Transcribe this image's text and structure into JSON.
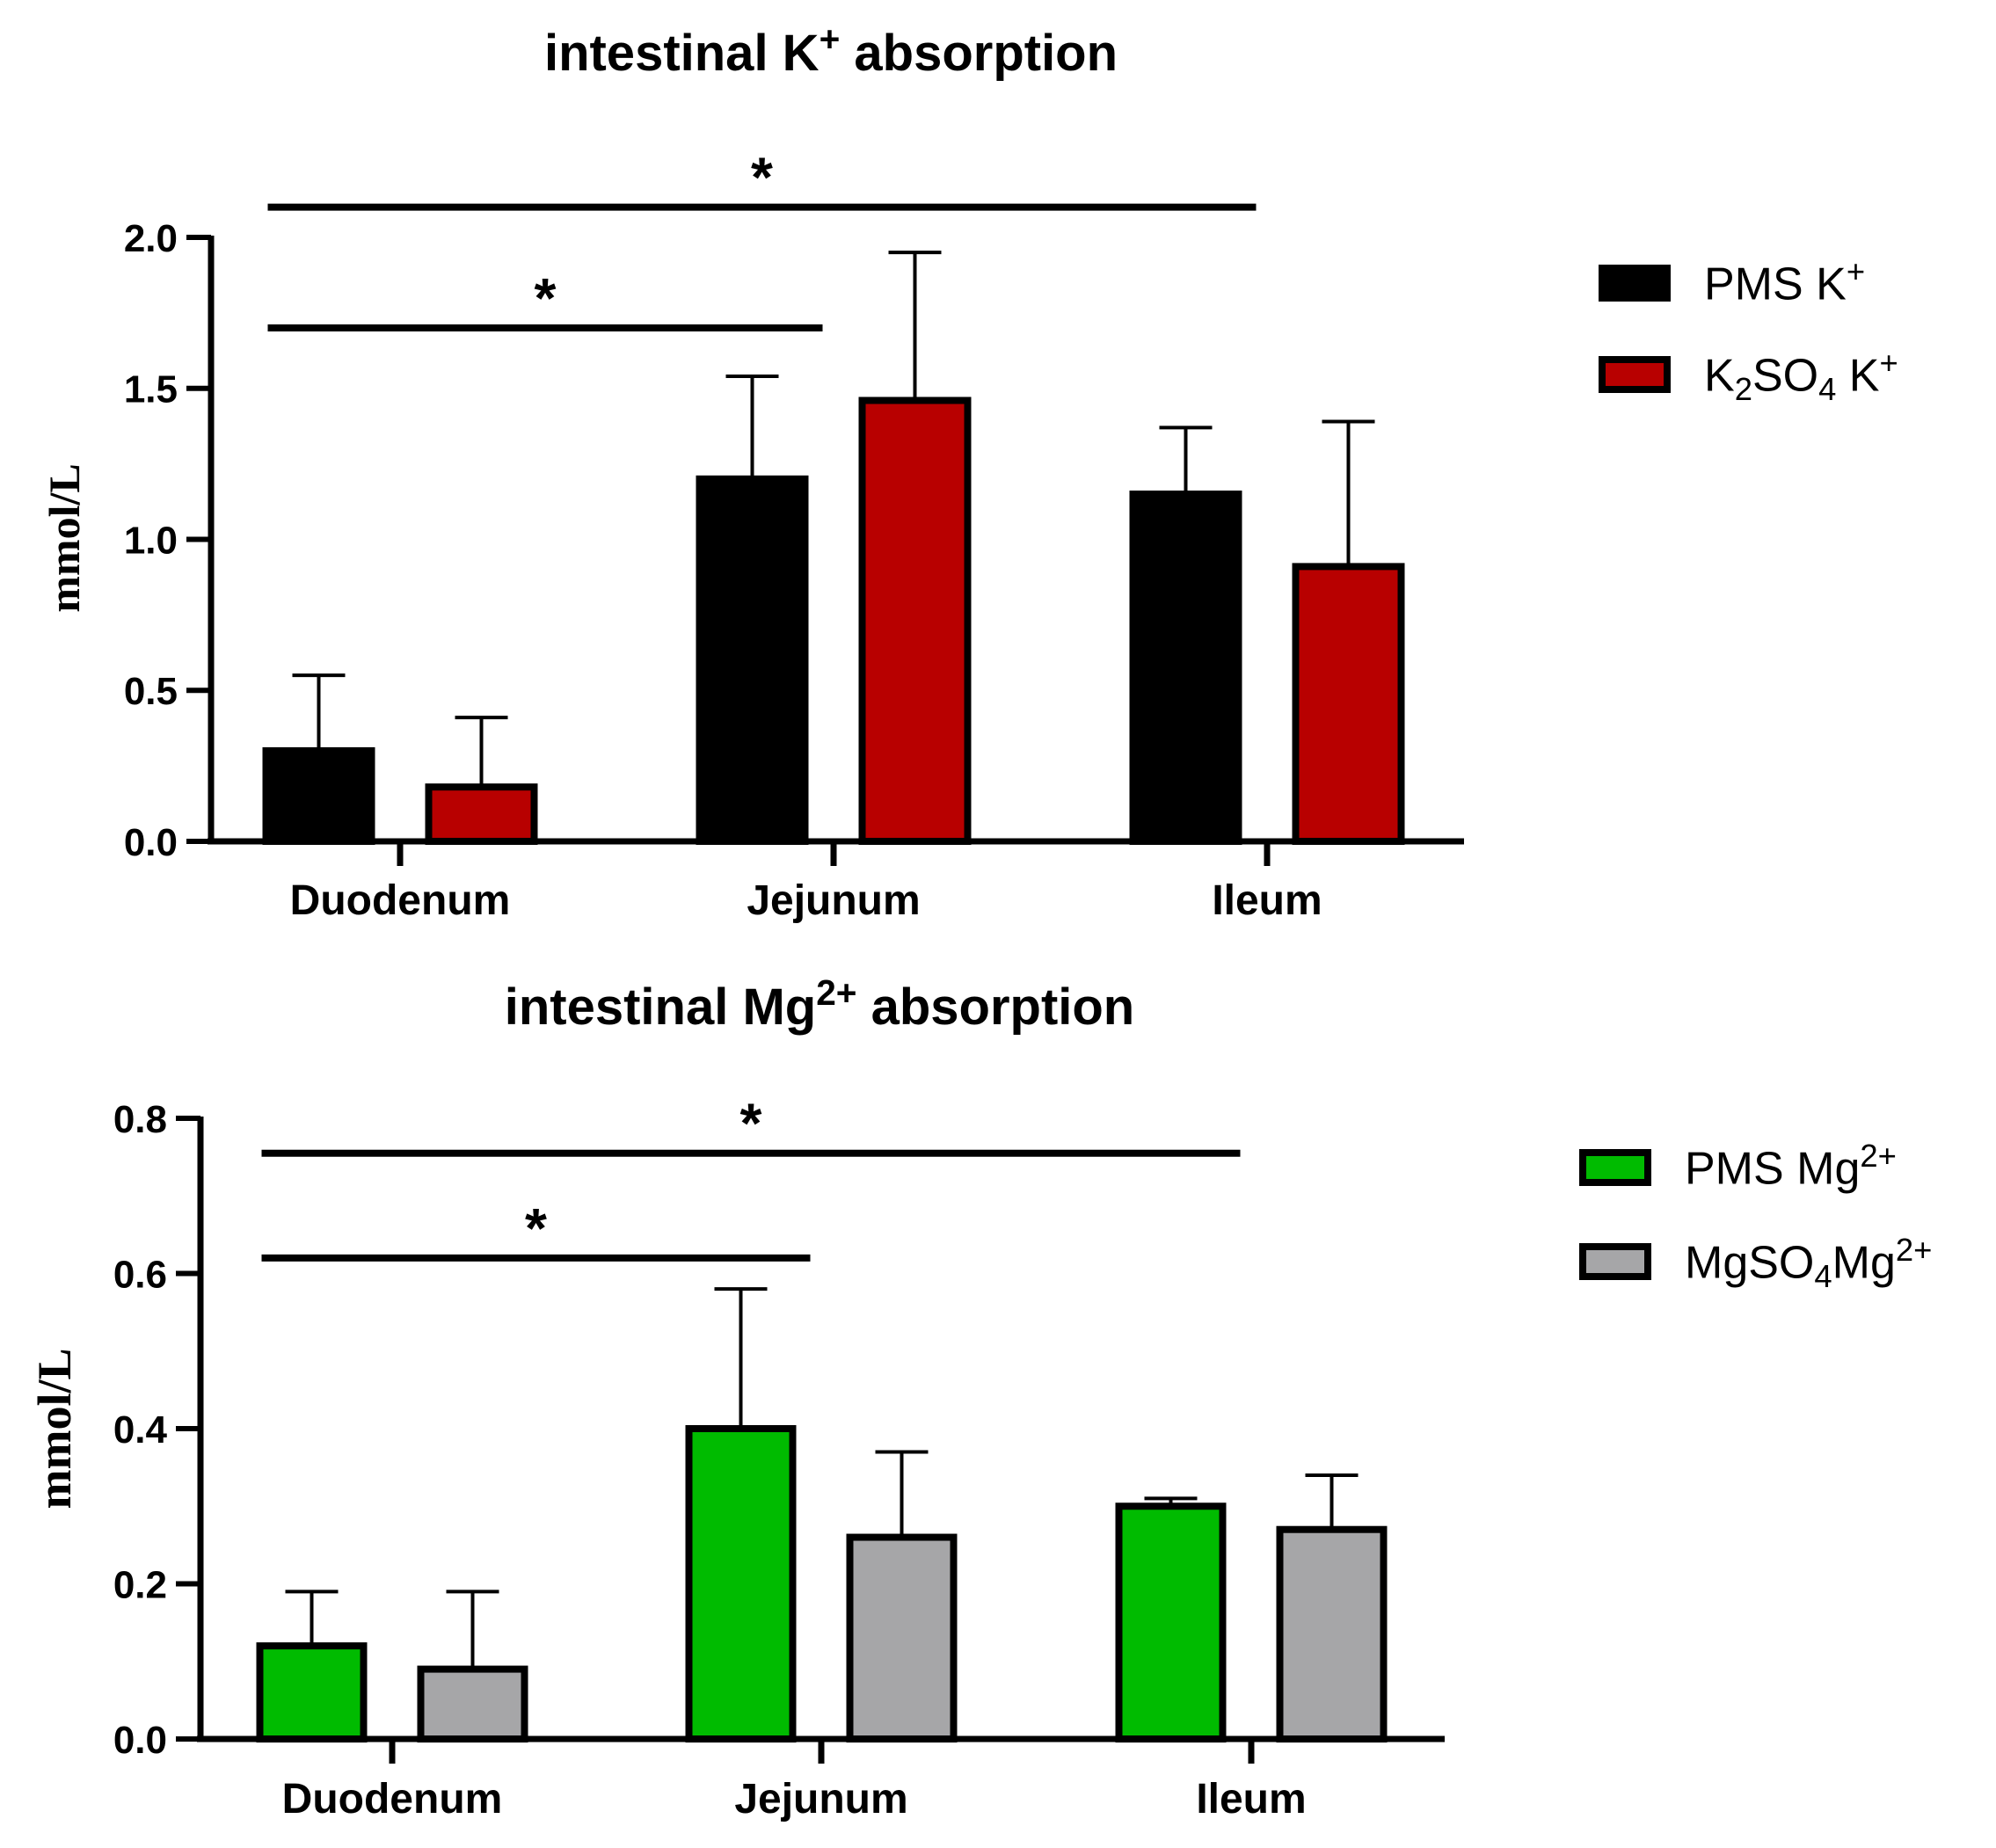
{
  "chart_data": [
    {
      "type": "bar",
      "title_main": "intestinal K",
      "title_sup": "+",
      "title_tail": " absorption",
      "ylabel": "mmol/L",
      "xlabel": "",
      "categories": [
        "Duodenum",
        "Jejunum",
        "Ileum"
      ],
      "ylim": [
        0,
        2.0
      ],
      "yticks": [
        "0.0",
        "0.5",
        "1.0",
        "1.5",
        "2.0"
      ],
      "ytick_values": [
        0,
        0.5,
        1.0,
        1.5,
        2.0
      ],
      "series": [
        {
          "name": "PMS K",
          "name_sup": "+",
          "color": "#000000",
          "values": [
            0.3,
            1.2,
            1.15
          ],
          "errors": [
            0.25,
            0.34,
            0.22
          ]
        },
        {
          "name": "K2SO4 K",
          "name_pre": "K",
          "name_sub": "2",
          "name_mid": "SO",
          "name_sub2": "4",
          "name_post": " K",
          "name_sup": "+",
          "color": "#b80000",
          "values": [
            0.18,
            1.46,
            0.91
          ],
          "errors": [
            0.23,
            0.49,
            0.48
          ]
        }
      ],
      "significance": [
        {
          "from": "Duodenum",
          "to": "Ileum",
          "label": "*",
          "level": 2.1
        },
        {
          "from": "Duodenum",
          "to": "Jejunum",
          "label": "*",
          "level": 1.7
        }
      ]
    },
    {
      "type": "bar",
      "title_main": "intestinal Mg",
      "title_sup": "2+",
      "title_tail": " absorption",
      "ylabel": "mmol/L",
      "xlabel": "",
      "categories": [
        "Duodenum",
        "Jejunum",
        "Ileum"
      ],
      "ylim": [
        0,
        0.8
      ],
      "yticks": [
        "0.0",
        "0.2",
        "0.4",
        "0.6",
        "0.8"
      ],
      "ytick_values": [
        0,
        0.2,
        0.4,
        0.6,
        0.8
      ],
      "series": [
        {
          "name": "PMS Mg",
          "name_sup": "2+",
          "color": "#00bb00",
          "values": [
            0.12,
            0.4,
            0.3
          ],
          "errors": [
            0.07,
            0.18,
            0.01
          ]
        },
        {
          "name": "MgSO4Mg",
          "name_pre": "MgSO",
          "name_sub": "4",
          "name_post": "Mg",
          "name_sup": "2+",
          "color": "#a6a6a8",
          "values": [
            0.09,
            0.26,
            0.27
          ],
          "errors": [
            0.1,
            0.11,
            0.07
          ]
        }
      ],
      "significance": [
        {
          "from": "Duodenum",
          "to": "Ileum",
          "label": "*",
          "level": 0.755
        },
        {
          "from": "Duodenum",
          "to": "Jejunum",
          "label": "*",
          "level": 0.62
        }
      ]
    }
  ]
}
